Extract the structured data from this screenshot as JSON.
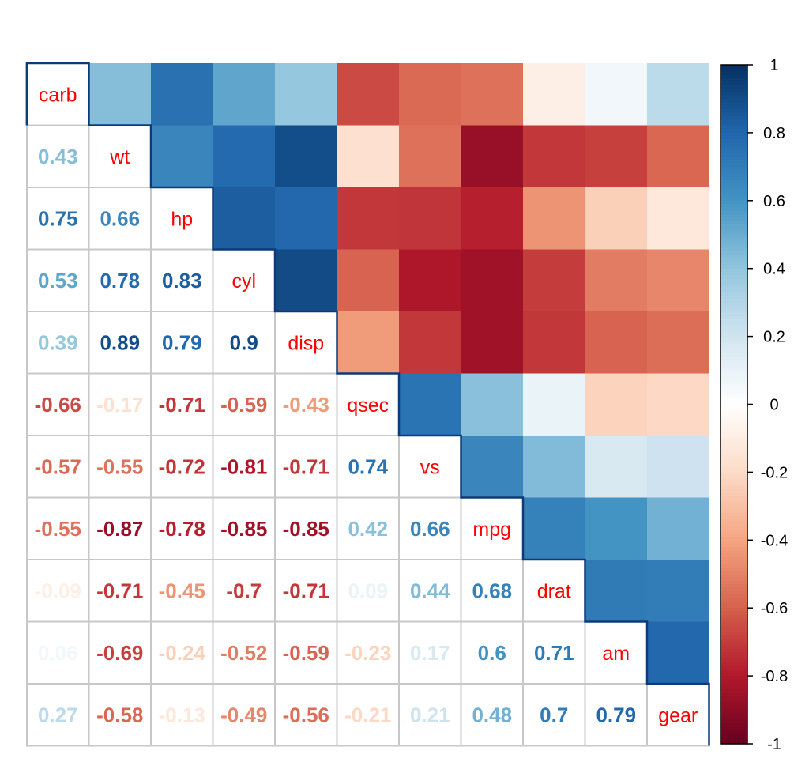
{
  "chart_data": {
    "type": "heatmap",
    "variables": [
      "carb",
      "wt",
      "hp",
      "cyl",
      "disp",
      "qsec",
      "vs",
      "mpg",
      "drat",
      "am",
      "gear"
    ],
    "correlations": [
      [
        1.0,
        0.43,
        0.75,
        0.53,
        0.39,
        -0.66,
        -0.57,
        -0.55,
        -0.09,
        0.06,
        0.27
      ],
      [
        0.43,
        1.0,
        0.66,
        0.78,
        0.89,
        -0.17,
        -0.55,
        -0.87,
        -0.71,
        -0.69,
        -0.58
      ],
      [
        0.75,
        0.66,
        1.0,
        0.83,
        0.79,
        -0.71,
        -0.72,
        -0.78,
        -0.45,
        -0.24,
        -0.13
      ],
      [
        0.53,
        0.78,
        0.83,
        1.0,
        0.9,
        -0.59,
        -0.81,
        -0.85,
        -0.7,
        -0.52,
        -0.49
      ],
      [
        0.39,
        0.89,
        0.79,
        0.9,
        1.0,
        -0.43,
        -0.71,
        -0.85,
        -0.71,
        -0.59,
        -0.56
      ],
      [
        -0.66,
        -0.17,
        -0.71,
        -0.59,
        -0.43,
        1.0,
        0.74,
        0.42,
        0.09,
        -0.23,
        -0.21
      ],
      [
        -0.57,
        -0.55,
        -0.72,
        -0.81,
        -0.71,
        0.74,
        1.0,
        0.66,
        0.44,
        0.17,
        0.21
      ],
      [
        -0.55,
        -0.87,
        -0.78,
        -0.85,
        -0.85,
        0.42,
        0.66,
        1.0,
        0.68,
        0.6,
        0.48
      ],
      [
        -0.09,
        -0.71,
        -0.45,
        -0.7,
        -0.71,
        0.09,
        0.44,
        0.68,
        1.0,
        0.71,
        0.7
      ],
      [
        0.06,
        -0.69,
        -0.24,
        -0.52,
        -0.59,
        -0.23,
        0.17,
        0.6,
        0.71,
        1.0,
        0.79
      ],
      [
        0.27,
        -0.58,
        -0.13,
        -0.49,
        -0.56,
        -0.21,
        0.21,
        0.48,
        0.7,
        0.79,
        1.0
      ]
    ],
    "upper_triangle": "colored squares",
    "lower_triangle": "correlation coefficients",
    "diagonal": "variable names",
    "label_color": "#ff0000",
    "colorbar": {
      "range": [
        -1,
        1
      ],
      "ticks": [
        "1",
        "0.8",
        "0.6",
        "0.4",
        "0.2",
        "0",
        "-0.2",
        "-0.4",
        "-0.6",
        "-0.8",
        "-1"
      ],
      "placement": "right"
    },
    "palette": [
      "#67001F",
      "#B2182B",
      "#D6604D",
      "#F4A582",
      "#FDDBC7",
      "#FFFFFF",
      "#D1E5F0",
      "#92C5DE",
      "#4393C3",
      "#2166AC",
      "#053061"
    ]
  }
}
